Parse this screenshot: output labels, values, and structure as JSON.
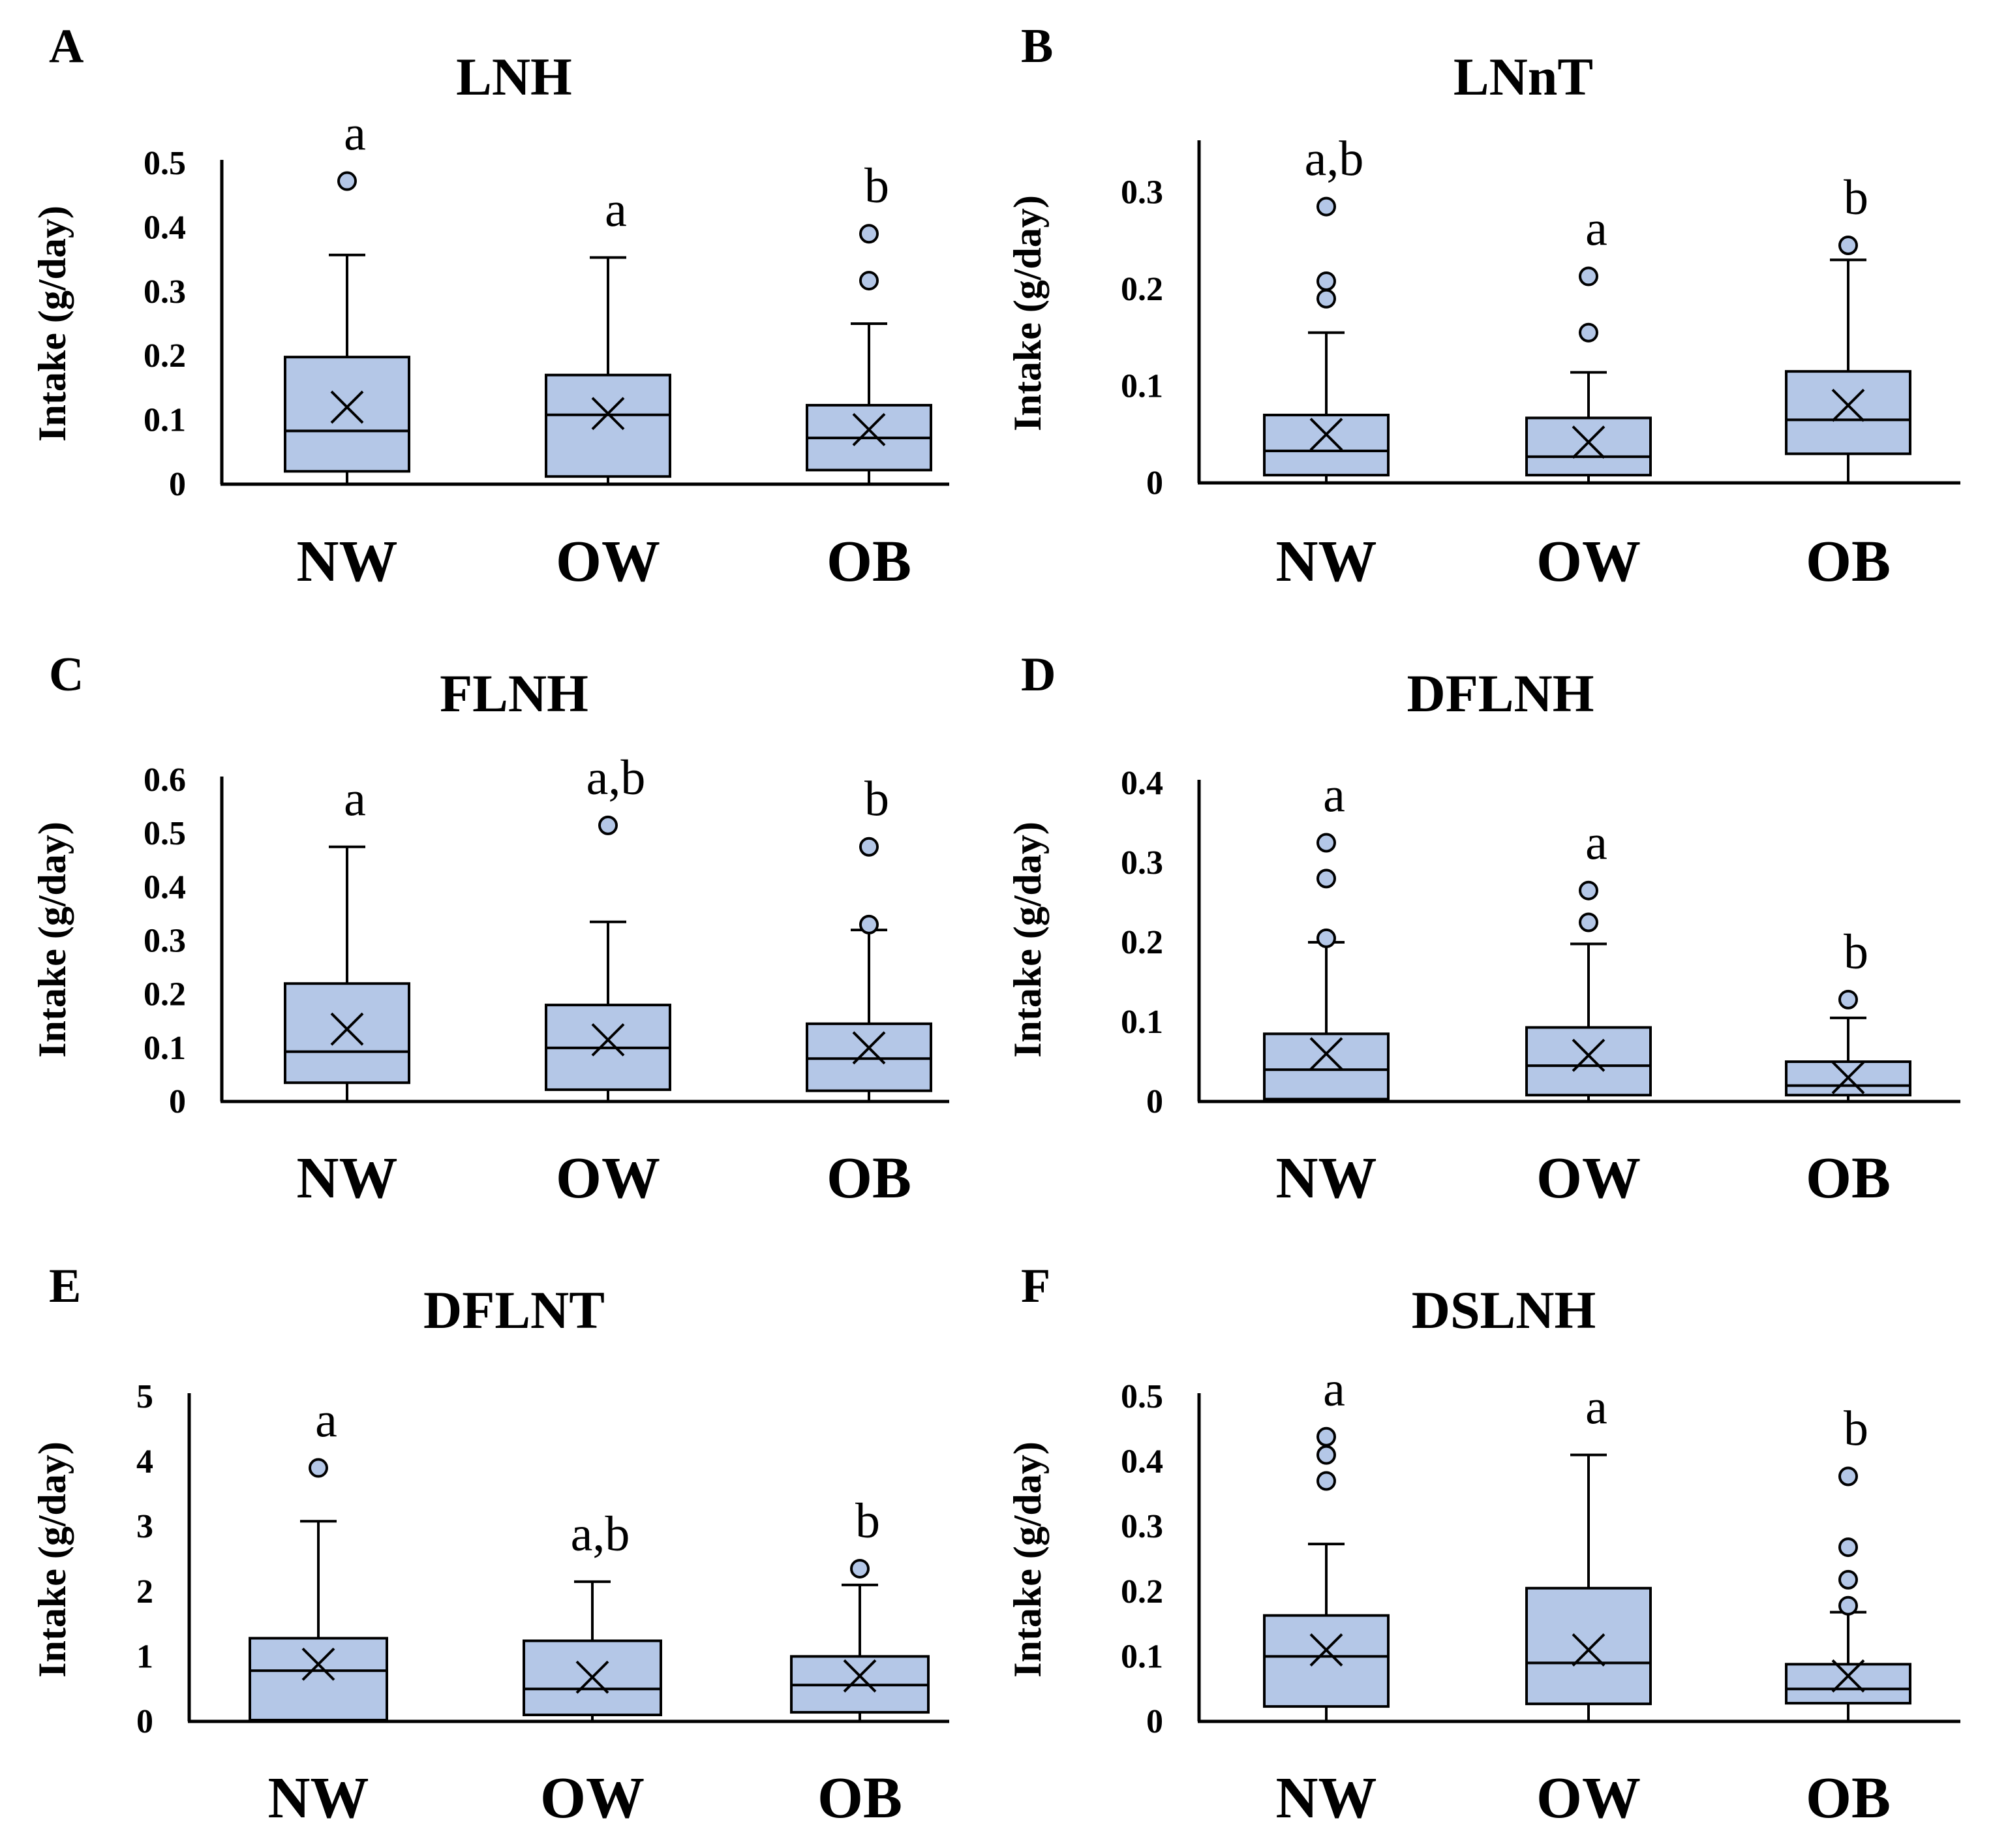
{
  "figure": {
    "y_axis_title": "Intake (g/day)",
    "box_fill": "#b4c7e7",
    "outline_color": "#000000"
  },
  "chart_data": [
    {
      "panel": "A",
      "title": "LNH",
      "type": "box",
      "ylim": [
        0,
        0.5
      ],
      "yticks": [
        0,
        0.1,
        0.2,
        0.3,
        0.4,
        0.5
      ],
      "ytick_labels": [
        "0",
        "0.1",
        "0.2",
        "0.3",
        "0.4",
        "0.5"
      ],
      "categories": [
        "NW",
        "OW",
        "OB"
      ],
      "groups": [
        {
          "q1": 0.02,
          "median": 0.083,
          "q3": 0.198,
          "mean": 0.12,
          "whisker_low": 0,
          "whisker_high": 0.357,
          "outliers": [
            0.472
          ],
          "sig": "a"
        },
        {
          "q1": 0.012,
          "median": 0.108,
          "q3": 0.17,
          "mean": 0.11,
          "whisker_low": 0,
          "whisker_high": 0.353,
          "outliers": [],
          "sig": "a"
        },
        {
          "q1": 0.022,
          "median": 0.072,
          "q3": 0.123,
          "mean": 0.085,
          "whisker_low": 0,
          "whisker_high": 0.25,
          "outliers": [
            0.317,
            0.39
          ],
          "sig": "b"
        }
      ]
    },
    {
      "panel": "B",
      "title": "LNnT",
      "type": "box",
      "ylim": [
        0,
        0.35
      ],
      "yticks": [
        0,
        0.1,
        0.2,
        0.3
      ],
      "ytick_labels": [
        "0",
        "0.1",
        "0.2",
        "0.3"
      ],
      "categories": [
        "NW",
        "OW",
        "OB"
      ],
      "groups": [
        {
          "q1": 0.008,
          "median": 0.033,
          "q3": 0.07,
          "mean": 0.05,
          "whisker_low": 0,
          "whisker_high": 0.155,
          "outliers": [
            0.19,
            0.208,
            0.285
          ],
          "sig": "a,b"
        },
        {
          "q1": 0.008,
          "median": 0.027,
          "q3": 0.067,
          "mean": 0.042,
          "whisker_low": 0,
          "whisker_high": 0.114,
          "outliers": [
            0.155,
            0.213
          ],
          "sig": "a"
        },
        {
          "q1": 0.03,
          "median": 0.065,
          "q3": 0.115,
          "mean": 0.08,
          "whisker_low": 0,
          "whisker_high": 0.23,
          "outliers": [
            0.245
          ],
          "sig": "b"
        }
      ]
    },
    {
      "panel": "C",
      "title": "FLNH",
      "type": "box",
      "ylim": [
        0,
        0.6
      ],
      "yticks": [
        0,
        0.1,
        0.2,
        0.3,
        0.4,
        0.5,
        0.6
      ],
      "ytick_labels": [
        "0",
        "0.1",
        "0.2",
        "0.3",
        "0.4",
        "0.5",
        "0.6"
      ],
      "categories": [
        "NW",
        "OW",
        "OB"
      ],
      "groups": [
        {
          "q1": 0.035,
          "median": 0.093,
          "q3": 0.22,
          "mean": 0.135,
          "whisker_low": 0,
          "whisker_high": 0.475,
          "outliers": [],
          "sig": "a"
        },
        {
          "q1": 0.022,
          "median": 0.1,
          "q3": 0.18,
          "mean": 0.115,
          "whisker_low": 0,
          "whisker_high": 0.335,
          "outliers": [
            0.515
          ],
          "sig": "a,b"
        },
        {
          "q1": 0.02,
          "median": 0.08,
          "q3": 0.145,
          "mean": 0.1,
          "whisker_low": 0,
          "whisker_high": 0.32,
          "outliers": [
            0.33,
            0.475
          ],
          "sig": "b"
        }
      ]
    },
    {
      "panel": "D",
      "title": "DFLNH",
      "type": "box",
      "ylim": [
        0,
        0.4
      ],
      "yticks": [
        0,
        0.1,
        0.2,
        0.3,
        0.4
      ],
      "ytick_labels": [
        "0",
        "0.1",
        "0.2",
        "0.3",
        "0.4"
      ],
      "categories": [
        "NW",
        "OW",
        "OB"
      ],
      "groups": [
        {
          "q1": 0.003,
          "median": 0.04,
          "q3": 0.085,
          "mean": 0.06,
          "whisker_low": 0,
          "whisker_high": 0.2,
          "outliers": [
            0.205,
            0.28,
            0.325
          ],
          "sig": "a"
        },
        {
          "q1": 0.008,
          "median": 0.045,
          "q3": 0.093,
          "mean": 0.058,
          "whisker_low": 0,
          "whisker_high": 0.198,
          "outliers": [
            0.225,
            0.265
          ],
          "sig": "a"
        },
        {
          "q1": 0.008,
          "median": 0.02,
          "q3": 0.05,
          "mean": 0.03,
          "whisker_low": 0,
          "whisker_high": 0.105,
          "outliers": [
            0.128
          ],
          "sig": "b"
        }
      ]
    },
    {
      "panel": "E",
      "title": "DFLNT",
      "type": "box",
      "ylim": [
        0,
        5
      ],
      "yticks": [
        0,
        1,
        2,
        3,
        4,
        5
      ],
      "ytick_labels": [
        "0",
        "1",
        "2",
        "3",
        "4",
        "5"
      ],
      "categories": [
        "NW",
        "OW",
        "OB"
      ],
      "groups": [
        {
          "q1": 0.02,
          "median": 0.78,
          "q3": 1.28,
          "mean": 0.88,
          "whisker_low": 0,
          "whisker_high": 3.08,
          "outliers": [
            3.9
          ],
          "sig": "a"
        },
        {
          "q1": 0.1,
          "median": 0.5,
          "q3": 1.24,
          "mean": 0.68,
          "whisker_low": 0,
          "whisker_high": 2.15,
          "outliers": [],
          "sig": "a,b"
        },
        {
          "q1": 0.14,
          "median": 0.56,
          "q3": 1.0,
          "mean": 0.7,
          "whisker_low": 0,
          "whisker_high": 2.1,
          "outliers": [
            2.35
          ],
          "sig": "b"
        }
      ]
    },
    {
      "panel": "F",
      "title": "DSLNH",
      "type": "box",
      "ylim": [
        0,
        0.5
      ],
      "yticks": [
        0,
        0.1,
        0.2,
        0.3,
        0.4,
        0.5
      ],
      "ytick_labels": [
        "0",
        "0.1",
        "0.2",
        "0.3",
        "0.4",
        "0.5"
      ],
      "categories": [
        "NW",
        "OW",
        "OB"
      ],
      "groups": [
        {
          "q1": 0.023,
          "median": 0.1,
          "q3": 0.163,
          "mean": 0.11,
          "whisker_low": 0,
          "whisker_high": 0.273,
          "outliers": [
            0.37,
            0.41,
            0.438
          ],
          "sig": "a"
        },
        {
          "q1": 0.027,
          "median": 0.09,
          "q3": 0.205,
          "mean": 0.11,
          "whisker_low": 0,
          "whisker_high": 0.41,
          "outliers": [],
          "sig": "a"
        },
        {
          "q1": 0.028,
          "median": 0.05,
          "q3": 0.088,
          "mean": 0.07,
          "whisker_low": 0,
          "whisker_high": 0.168,
          "outliers": [
            0.178,
            0.218,
            0.268,
            0.377
          ],
          "sig": "b"
        }
      ]
    }
  ]
}
